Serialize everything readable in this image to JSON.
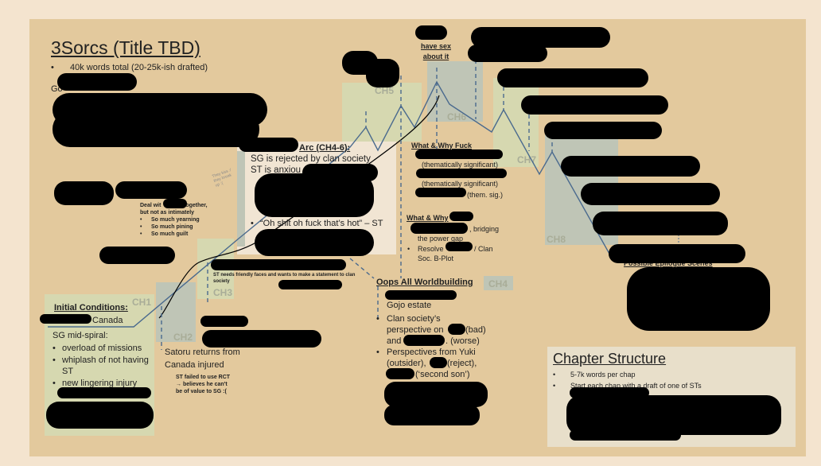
{
  "title": "3Sorcs (Title TBD)",
  "title_bullets": [
    "40k words total (20-25k-ish drafted)"
  ],
  "goals_prefix": "Go",
  "chapters": {
    "ch1": "CH1",
    "ch2": "CH2",
    "ch3": "CH3",
    "ch4": "CH4",
    "ch5": "CH5",
    "ch6": "CH6",
    "ch7": "CH7",
    "ch8": "CH8"
  },
  "initial": {
    "heading": "Initial Conditions:",
    "line1": "Canada",
    "sub": "SG mid-spiral:",
    "bullets": [
      "overload of missions",
      "whiplash of not having ST",
      "new lingering injury"
    ]
  },
  "ch2_note": {
    "line1": "Satoru returns from",
    "line2": "Canada injured",
    "small": [
      "ST failed to use RCT",
      "→ believes he can't",
      "be of value to SG :("
    ]
  },
  "ch3_note": "ST needs friendly faces and wants to make a statement to clan society",
  "deal": {
    "line1": "together,",
    "line1_prefix": "Deal wit",
    "line2": "but not as intimately",
    "bullets": [
      "So much yearning",
      "So much pining",
      "So much guilt"
    ]
  },
  "tiny_note": "They kiss :/ they break up :(",
  "arc": {
    "heading": "Arc (CH4-6):",
    "line1": "SG is rejected by clan society",
    "line2": "ST is anxiou",
    "quote": "“Oh shit oh fuck that’s hot” – ST"
  },
  "worldbuilding": {
    "heading": "Oops All Worldbuilding",
    "b1": "Gojo estate",
    "b2a": "Clan society’s",
    "b2b": "perspective on",
    "b2c": "(bad)",
    "b2d": "and",
    "b2e": ". (worse)",
    "b3a": "Perspectives from Yuki",
    "b3b": "(outsider),",
    "b3c": "(reject),",
    "b3d": "(‘second son’)"
  },
  "sex_label": [
    "have sex",
    "about it"
  ],
  "fuck": {
    "heading": "What & Why Fuck",
    "b1": "(thematically significant)",
    "b2": "(thematically significant)",
    "b3": "(them. sig.)"
  },
  "why2": {
    "heading": "What & Why",
    "b1a": ", bridging",
    "b1b": "the power gap",
    "b2a": "Resolve",
    "b2b": "/ Clan",
    "b2c": "Soc. B-Plot"
  },
  "epilogue": {
    "heading": "Possible Epilogue Scenes"
  },
  "chapter_structure": {
    "heading": "Chapter Structure",
    "bullets": [
      "5-7k words per chap",
      "Start each chap with a draft of one of STs"
    ]
  },
  "colors": {
    "slide": "#e3c99d",
    "green_box": "#d6d8b0",
    "blue_box": "#bfc5b6",
    "plot_line": "#4a6a8e"
  }
}
